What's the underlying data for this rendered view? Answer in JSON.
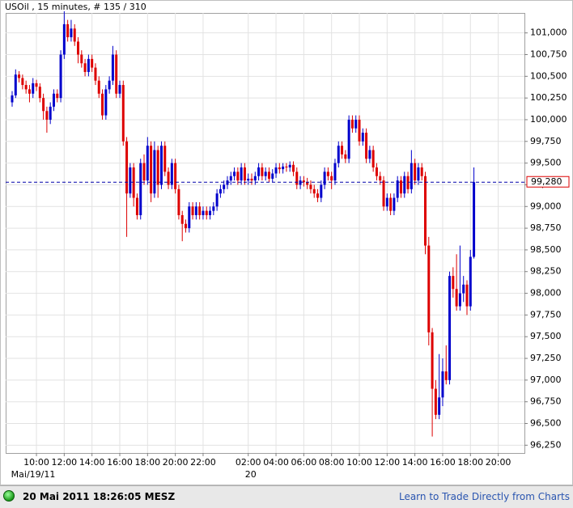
{
  "chart_data": {
    "type": "candlestick",
    "title": "USOil , 15 minutes, # 135 / 310",
    "categories": [
      null,
      null,
      null,
      null,
      null,
      null,
      null,
      "10:00",
      null,
      null,
      null,
      null,
      null,
      null,
      null,
      "12:00",
      null,
      null,
      null,
      null,
      null,
      null,
      null,
      "14:00",
      null,
      null,
      null,
      null,
      null,
      null,
      null,
      "16:00",
      null,
      null,
      null,
      null,
      null,
      null,
      null,
      "18:00",
      null,
      null,
      null,
      null,
      null,
      null,
      null,
      "20:00",
      null,
      null,
      null,
      null,
      null,
      null,
      null,
      "22:00",
      null,
      null,
      null,
      null,
      null,
      null,
      null,
      null,
      null,
      null,
      null,
      null,
      "02:00",
      null,
      null,
      null,
      null,
      null,
      null,
      null,
      "04:00",
      null,
      null,
      null,
      null,
      null,
      null,
      null,
      "06:00",
      null,
      null,
      null,
      null,
      null,
      null,
      null,
      "08:00",
      null,
      null,
      null,
      null,
      null,
      null,
      null,
      "10:00",
      null,
      null,
      null,
      null,
      null,
      null,
      null,
      "12:00",
      null,
      null,
      null,
      null,
      null,
      null,
      null,
      "14:00",
      null,
      null,
      null,
      null,
      null,
      null,
      null,
      "16:00",
      null,
      null,
      null,
      null,
      null,
      null,
      null,
      "18:00",
      null,
      null,
      null,
      null,
      null,
      null,
      null,
      "20:00"
    ],
    "dates": [
      null,
      null,
      null,
      null,
      null,
      null,
      null,
      "Mai/19/11",
      null,
      null,
      null,
      null,
      null,
      null,
      null,
      null,
      null,
      null,
      null,
      null,
      null,
      null,
      null,
      null,
      null,
      null,
      null,
      null,
      null,
      null,
      null,
      null,
      null,
      null,
      null,
      null,
      null,
      null,
      null,
      null,
      null,
      null,
      null,
      null,
      null,
      null,
      null,
      null,
      null,
      null,
      null,
      null,
      null,
      null,
      null,
      null,
      null,
      null,
      null,
      null,
      null,
      null,
      null,
      null,
      null,
      null,
      null,
      null,
      "20",
      null,
      null,
      null,
      null,
      null,
      null,
      null,
      null,
      null,
      null,
      null,
      null,
      null,
      null,
      null,
      null,
      null,
      null,
      null,
      null,
      null,
      null,
      null,
      null,
      null,
      null,
      null,
      null,
      null,
      null,
      null,
      null,
      null,
      null,
      null,
      null,
      null,
      null,
      null,
      null,
      null,
      null,
      null,
      null,
      null,
      null,
      null,
      null,
      null,
      null,
      null,
      null,
      null,
      null,
      null,
      null,
      null,
      null,
      null,
      null,
      null,
      null,
      null,
      null,
      null,
      null,
      null,
      null,
      null,
      null,
      null
    ],
    "open": [
      100200,
      100280,
      100520,
      100480,
      100400,
      100350,
      100300,
      100420,
      100380,
      100250,
      100100,
      100000,
      100150,
      100300,
      100250,
      100750,
      101100,
      100950,
      101050,
      100900,
      100750,
      100650,
      100550,
      100700,
      100600,
      100450,
      100300,
      100050,
      100350,
      100450,
      100750,
      100300,
      100400,
      99750,
      99150,
      99450,
      99100,
      98900,
      99500,
      99300,
      99700,
      99150,
      99650,
      99250,
      99700,
      99400,
      99250,
      99500,
      99200,
      98900,
      98800,
      98750,
      99000,
      98900,
      99000,
      98900,
      98950,
      98900,
      98950,
      99000,
      99150,
      99200,
      99250,
      99300,
      99350,
      99400,
      99300,
      99450,
      99300,
      99320,
      99300,
      99350,
      99450,
      99350,
      99400,
      99320,
      99380,
      99450,
      99430,
      99460,
      99450,
      99480,
      99400,
      99250,
      99300,
      99280,
      99250,
      99200,
      99150,
      99100,
      99250,
      99400,
      99350,
      99300,
      99500,
      99700,
      99600,
      99550,
      100000,
      99900,
      100000,
      99750,
      99850,
      99550,
      99650,
      99450,
      99350,
      99300,
      99000,
      99100,
      98950,
      99100,
      99300,
      99150,
      99350,
      99200,
      99500,
      99300,
      99450,
      99350,
      98550,
      97550,
      96900,
      96600,
      96800,
      97100,
      97000,
      98200,
      98050,
      97850,
      98000,
      98100,
      97850,
      98420,
      null,
      null,
      null,
      null,
      null,
      null,
      null
    ],
    "high": [
      100330,
      100580,
      100560,
      100520,
      100450,
      100400,
      100480,
      100460,
      100420,
      100300,
      100150,
      100200,
      100350,
      100350,
      100800,
      101250,
      101150,
      101150,
      101100,
      100950,
      100800,
      100700,
      100750,
      100750,
      100650,
      100500,
      100350,
      100400,
      100500,
      100850,
      100800,
      100450,
      100450,
      99800,
      99500,
      99500,
      99150,
      99550,
      99600,
      99800,
      99750,
      99750,
      99700,
      99750,
      99750,
      99450,
      99550,
      99550,
      99250,
      98950,
      98850,
      99050,
      99050,
      99050,
      99050,
      99000,
      99000,
      99000,
      99050,
      99200,
      99250,
      99300,
      99350,
      99400,
      99450,
      99450,
      99500,
      99500,
      99380,
      99380,
      99400,
      99500,
      99500,
      99450,
      99450,
      99430,
      99500,
      99500,
      99500,
      99500,
      99520,
      99520,
      99450,
      99350,
      99350,
      99330,
      99300,
      99250,
      99200,
      99300,
      99450,
      99450,
      99400,
      99550,
      99750,
      99750,
      99650,
      100050,
      100050,
      100050,
      100050,
      99900,
      99900,
      99700,
      99700,
      99500,
      99400,
      99350,
      99150,
      99150,
      99150,
      99350,
      99350,
      99400,
      99400,
      99650,
      99550,
      99500,
      99500,
      99400,
      98650,
      97600,
      97000,
      97300,
      97250,
      97400,
      98250,
      98300,
      98450,
      98550,
      98200,
      98150,
      98500,
      99450,
      null,
      null,
      null,
      null,
      null,
      null,
      null
    ],
    "low": [
      100150,
      100250,
      100430,
      100350,
      100300,
      100200,
      100250,
      100330,
      100200,
      100000,
      99850,
      99950,
      100100,
      100200,
      100200,
      100700,
      100900,
      100900,
      100850,
      100650,
      100600,
      100500,
      100500,
      100550,
      100400,
      100250,
      100000,
      100000,
      100300,
      100400,
      100250,
      100250,
      99700,
      98650,
      99100,
      99000,
      98850,
      98850,
      99250,
      99250,
      99050,
      99100,
      99100,
      99200,
      99350,
      99200,
      99200,
      99150,
      98850,
      98600,
      98700,
      98700,
      98850,
      98850,
      98850,
      98850,
      98850,
      98850,
      98900,
      98950,
      99100,
      99150,
      99200,
      99250,
      99300,
      99250,
      99250,
      99250,
      99250,
      99250,
      99250,
      99300,
      99300,
      99300,
      99280,
      99280,
      99330,
      99380,
      99380,
      99400,
      99400,
      99350,
      99200,
      99200,
      99230,
      99200,
      99150,
      99100,
      99050,
      99050,
      99200,
      99300,
      99200,
      99250,
      99450,
      99550,
      99500,
      99500,
      99850,
      99850,
      99700,
      99700,
      99500,
      99500,
      99400,
      99300,
      99250,
      98950,
      98950,
      98900,
      98900,
      99050,
      99100,
      99100,
      99150,
      99150,
      99250,
      99250,
      99300,
      98450,
      97400,
      96350,
      96550,
      96550,
      96700,
      96950,
      96950,
      97950,
      97800,
      97800,
      97900,
      97750,
      97800,
      98400,
      null,
      null,
      null,
      null,
      null,
      null,
      null
    ],
    "close": [
      100280,
      100520,
      100480,
      100400,
      100350,
      100300,
      100420,
      100380,
      100250,
      100100,
      100000,
      100150,
      100300,
      100250,
      100750,
      101100,
      100950,
      101050,
      100900,
      100750,
      100650,
      100550,
      100700,
      100600,
      100450,
      100300,
      100050,
      100350,
      100450,
      100750,
      100300,
      100400,
      99750,
      99150,
      99450,
      99100,
      98900,
      99500,
      99300,
      99700,
      99150,
      99650,
      99250,
      99700,
      99400,
      99250,
      99500,
      99200,
      98900,
      98800,
      98750,
      99000,
      98900,
      99000,
      98900,
      98950,
      98900,
      98950,
      99000,
      99150,
      99200,
      99250,
      99300,
      99350,
      99400,
      99300,
      99450,
      99300,
      99320,
      99300,
      99350,
      99450,
      99350,
      99400,
      99320,
      99380,
      99450,
      99430,
      99460,
      99450,
      99480,
      99400,
      99250,
      99300,
      99280,
      99250,
      99200,
      99150,
      99100,
      99250,
      99400,
      99350,
      99300,
      99500,
      99700,
      99600,
      99550,
      100000,
      99900,
      100000,
      99750,
      99850,
      99550,
      99650,
      99450,
      99350,
      99300,
      99000,
      99100,
      98950,
      99100,
      99300,
      99150,
      99350,
      99200,
      99500,
      99300,
      99450,
      99350,
      98550,
      97550,
      96900,
      96600,
      96800,
      97100,
      97000,
      98200,
      98050,
      97850,
      98000,
      98100,
      97850,
      98420,
      99280,
      null,
      null,
      null,
      null,
      null,
      null,
      null
    ],
    "up_color": "#0000cc",
    "down_color": "#dd0000",
    "ylim": [
      96160,
      101230
    ],
    "yticks": [
      {
        "value": 96250,
        "label": "96,250"
      },
      {
        "value": 96500,
        "label": "96,500"
      },
      {
        "value": 96750,
        "label": "96,750"
      },
      {
        "value": 97000,
        "label": "97,000"
      },
      {
        "value": 97250,
        "label": "97,250"
      },
      {
        "value": 97500,
        "label": "97,500"
      },
      {
        "value": 97750,
        "label": "97,750"
      },
      {
        "value": 98000,
        "label": "98,000"
      },
      {
        "value": 98250,
        "label": "98,250"
      },
      {
        "value": 98500,
        "label": "98,500"
      },
      {
        "value": 98750,
        "label": "98,750"
      },
      {
        "value": 99000,
        "label": "99,000"
      },
      {
        "value": 99250,
        "label": "99,250"
      },
      {
        "value": 99500,
        "label": "99,500"
      },
      {
        "value": 99750,
        "label": "99,750"
      },
      {
        "value": 100000,
        "label": "100,000"
      },
      {
        "value": 100250,
        "label": "100,250"
      },
      {
        "value": 100500,
        "label": "100,500"
      },
      {
        "value": 100750,
        "label": "100,750"
      },
      {
        "value": 101000,
        "label": "101,000"
      }
    ],
    "price_line": {
      "value": 99280,
      "label": "99,280",
      "color": "#0000aa"
    },
    "grid": true
  },
  "status_bar": {
    "timestamp": "20 Mai 2011 18:26:05 MESZ",
    "link": "Learn to Trade Directly from Charts"
  }
}
